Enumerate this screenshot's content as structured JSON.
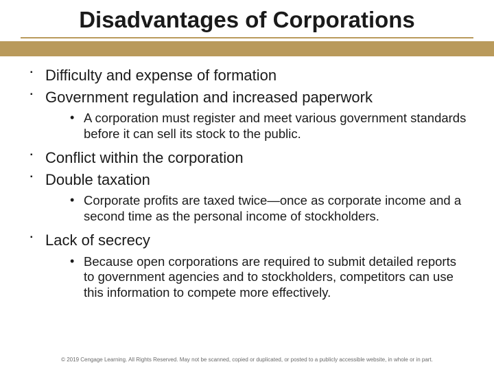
{
  "title": "Disadvantages of Corporations",
  "colors": {
    "rule": "#b99a5b",
    "bar": "#b99a5b",
    "text": "#1a1a1a",
    "background": "#ffffff",
    "footer": "#6a6a6a"
  },
  "typography": {
    "title_fontsize": 33,
    "lvl1_fontsize": 22,
    "lvl2_fontsize": 18.5,
    "footer_fontsize": 8,
    "font_family": "Arial"
  },
  "bullets": [
    {
      "text": "Difficulty and expense of formation",
      "sub": []
    },
    {
      "text": "Government regulation and increased paperwork",
      "sub": [
        "A corporation must register and meet various government standards before it can sell its stock to the public."
      ]
    },
    {
      "text": "Conflict within the corporation",
      "sub": []
    },
    {
      "text": "Double taxation",
      "sub": [
        "Corporate profits are taxed twice—once as corporate income and a second time as the personal income of stockholders."
      ]
    },
    {
      "text": "Lack of secrecy",
      "sub": [
        "Because open corporations are required to submit detailed reports to government agencies and to stockholders, competitors can use this information to compete more effectively."
      ]
    }
  ],
  "footer": "© 2019 Cengage Learning. All Rights Reserved. May not be scanned, copied or duplicated, or posted to a publicly accessible website, in whole or in part."
}
